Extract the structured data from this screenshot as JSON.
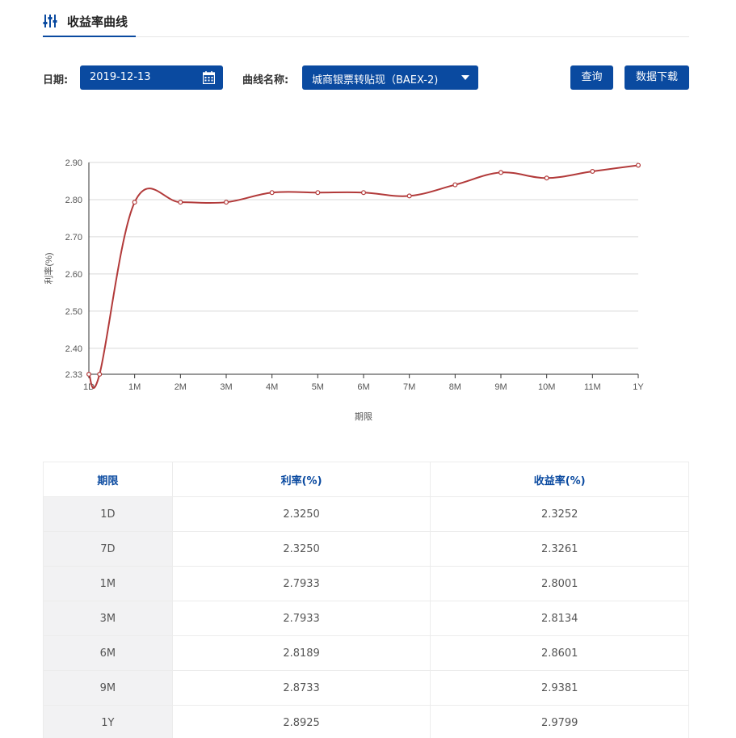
{
  "header": {
    "title": "收益率曲线",
    "icon": "sliders-icon"
  },
  "filters": {
    "date_label": "日期:",
    "date_value": "2019-12-13",
    "curve_label": "曲线名称:",
    "curve_value": "城商银票转贴现（BAEX-2)",
    "query_label": "查询",
    "download_label": "数据下载"
  },
  "colors": {
    "accent": "#0a4aa0",
    "line": "#b23a3a"
  },
  "chart_data": {
    "type": "line",
    "categories": [
      "1D",
      "1M",
      "2M",
      "3M",
      "4M",
      "5M",
      "6M",
      "7M",
      "8M",
      "9M",
      "10M",
      "11M",
      "1Y"
    ],
    "points": [
      {
        "x": "1D",
        "y": 2.33
      },
      {
        "x": "7D",
        "y": 2.33
      },
      {
        "x": "1M",
        "y": 2.793
      },
      {
        "x": "2M",
        "y": 2.793
      },
      {
        "x": "3M",
        "y": 2.793
      },
      {
        "x": "4M",
        "y": 2.819
      },
      {
        "x": "5M",
        "y": 2.819
      },
      {
        "x": "6M",
        "y": 2.819
      },
      {
        "x": "7M",
        "y": 2.81
      },
      {
        "x": "8M",
        "y": 2.84
      },
      {
        "x": "9M",
        "y": 2.873
      },
      {
        "x": "10M",
        "y": 2.858
      },
      {
        "x": "11M",
        "y": 2.876
      },
      {
        "x": "1Y",
        "y": 2.8925
      }
    ],
    "xlabel": "期限",
    "ylabel": "利率(%)",
    "yticks": [
      "2.90",
      "2.80",
      "2.70",
      "2.60",
      "2.50",
      "2.40",
      "2.33"
    ],
    "ylim": [
      2.33,
      2.9
    ],
    "grid": true
  },
  "table": {
    "headers": [
      "期限",
      "利率(%)",
      "收益率(%)"
    ],
    "rows": [
      [
        "1D",
        "2.3250",
        "2.3252"
      ],
      [
        "7D",
        "2.3250",
        "2.3261"
      ],
      [
        "1M",
        "2.7933",
        "2.8001"
      ],
      [
        "3M",
        "2.7933",
        "2.8134"
      ],
      [
        "6M",
        "2.8189",
        "2.8601"
      ],
      [
        "9M",
        "2.8733",
        "2.9381"
      ],
      [
        "1Y",
        "2.8925",
        "2.9799"
      ]
    ]
  }
}
